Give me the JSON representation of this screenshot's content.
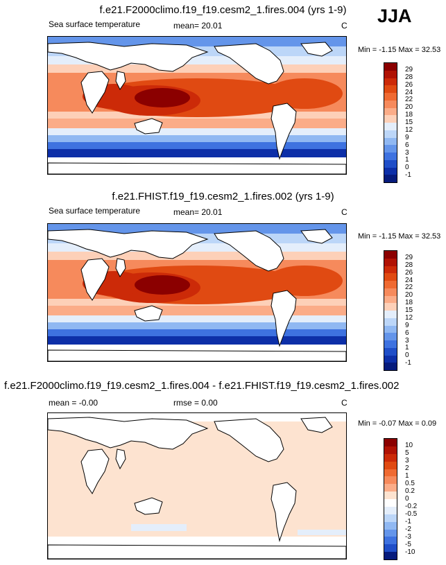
{
  "season": "JJA",
  "panels": [
    {
      "title": "f.e21.F2000climo.f19_f19.cesm2_1.fires.004 (yrs 1-9)",
      "left_label": "Sea surface temperature",
      "stat_label": "mean=  20.01",
      "units": "C",
      "minmax": "Min =  -1.15 Max =  32.53",
      "levels": [
        "29",
        "28",
        "26",
        "24",
        "22",
        "20",
        "18",
        "15",
        "12",
        "9",
        "6",
        "3",
        "1",
        "0",
        "-1"
      ],
      "colors": [
        "#8b0000",
        "#b01204",
        "#cc2a08",
        "#e04a12",
        "#ef6a32",
        "#f68a5c",
        "#fbac88",
        "#fdd0b8",
        "#e4eefb",
        "#bcd6f8",
        "#90b8f2",
        "#6495ea",
        "#3e72e0",
        "#1f4ec8",
        "#0d2fa8",
        "#061b7c"
      ]
    },
    {
      "title": "f.e21.FHIST.f19_f19.cesm2_1.fires.002 (yrs 1-9)",
      "left_label": "Sea surface temperature",
      "stat_label": "mean=  20.01",
      "units": "C",
      "minmax": "Min =  -1.15 Max =  32.53",
      "levels": [
        "29",
        "28",
        "26",
        "24",
        "22",
        "20",
        "18",
        "15",
        "12",
        "9",
        "6",
        "3",
        "1",
        "0",
        "-1"
      ],
      "colors": [
        "#8b0000",
        "#b01204",
        "#cc2a08",
        "#e04a12",
        "#ef6a32",
        "#f68a5c",
        "#fbac88",
        "#fdd0b8",
        "#e4eefb",
        "#bcd6f8",
        "#90b8f2",
        "#6495ea",
        "#3e72e0",
        "#1f4ec8",
        "#0d2fa8",
        "#061b7c"
      ]
    },
    {
      "title": "f.e21.F2000climo.f19_f19.cesm2_1.fires.004 - f.e21.FHIST.f19_f19.cesm2_1.fires.002",
      "left_label": "mean =  -0.00",
      "stat_label": "rmse =  0.00",
      "units": "C",
      "minmax": "Min = -0.07 Max =  0.09",
      "levels": [
        "10",
        "5",
        "3",
        "2",
        "1",
        "0.5",
        "0.2",
        "0",
        "-0.2",
        "-0.5",
        "-1",
        "-2",
        "-3",
        "-5",
        "-10"
      ],
      "colors": [
        "#8b0000",
        "#b01204",
        "#cc2a08",
        "#e04a12",
        "#ef6a32",
        "#f68a5c",
        "#fbac88",
        "#fde3d0",
        "#ffffff",
        "#e4eefb",
        "#bcd6f8",
        "#90b8f2",
        "#6495ea",
        "#3e72e0",
        "#1f4ec8",
        "#061b7c"
      ]
    }
  ]
}
